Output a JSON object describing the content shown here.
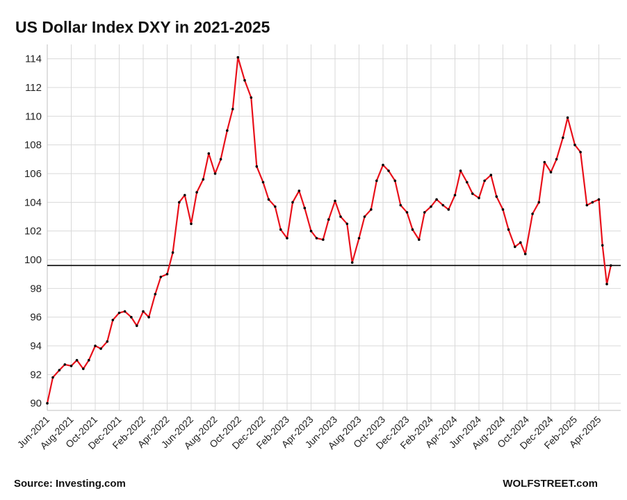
{
  "chart_data": {
    "type": "line",
    "title": "US Dollar Index DXY in 2021-2025",
    "xlabel": "",
    "ylabel": "",
    "ylim": [
      89.5,
      115
    ],
    "y_ticks": [
      90,
      92,
      94,
      96,
      98,
      100,
      102,
      104,
      106,
      108,
      110,
      112,
      114
    ],
    "x_ticks": [
      "Jun-2021",
      "Aug-2021",
      "Oct-2021",
      "Dec-2021",
      "Feb-2022",
      "Apr-2022",
      "Jun-2022",
      "Aug-2022",
      "Oct-2022",
      "Dec-2022",
      "Feb-2023",
      "Apr-2023",
      "Jun-2023",
      "Aug-2023",
      "Oct-2023",
      "Dec-2023",
      "Feb-2024",
      "Apr-2024",
      "Jun-2024",
      "Aug-2024",
      "Oct-2024",
      "Dec-2024",
      "Feb-2025",
      "Apr-2025"
    ],
    "grid": true,
    "line_color": "#e8101a",
    "marker_color": "#000000",
    "reference_line": {
      "y": 99.6,
      "color": "#000000"
    },
    "series": [
      {
        "x": [
          "2021-06-01",
          "2021-06-15",
          "2021-07-01",
          "2021-07-15",
          "2021-08-01",
          "2021-08-15",
          "2021-09-01",
          "2021-09-15",
          "2021-10-01",
          "2021-10-15",
          "2021-11-01",
          "2021-11-15",
          "2021-12-01",
          "2021-12-15",
          "2022-01-01",
          "2022-01-15",
          "2022-02-01",
          "2022-02-15",
          "2022-03-01",
          "2022-03-15",
          "2022-04-01",
          "2022-04-15",
          "2022-05-01",
          "2022-05-15",
          "2022-06-01",
          "2022-06-15",
          "2022-07-01",
          "2022-07-15",
          "2022-08-01",
          "2022-08-15",
          "2022-09-01",
          "2022-09-15",
          "2022-09-28",
          "2022-10-15",
          "2022-11-01",
          "2022-11-15",
          "2022-12-01",
          "2022-12-15",
          "2023-01-01",
          "2023-01-15",
          "2023-02-01",
          "2023-02-15",
          "2023-03-01",
          "2023-03-15",
          "2023-04-01",
          "2023-04-15",
          "2023-05-01",
          "2023-05-15",
          "2023-06-01",
          "2023-06-15",
          "2023-07-01",
          "2023-07-14",
          "2023-08-01",
          "2023-08-15",
          "2023-09-01",
          "2023-09-15",
          "2023-10-01",
          "2023-10-15",
          "2023-11-01",
          "2023-11-15",
          "2023-12-01",
          "2023-12-15",
          "2024-01-01",
          "2024-01-15",
          "2024-02-01",
          "2024-02-15",
          "2024-03-01",
          "2024-03-15",
          "2024-04-01",
          "2024-04-15",
          "2024-05-01",
          "2024-05-15",
          "2024-06-01",
          "2024-06-15",
          "2024-07-01",
          "2024-07-15",
          "2024-08-01",
          "2024-08-15",
          "2024-09-01",
          "2024-09-15",
          "2024-09-27",
          "2024-10-15",
          "2024-11-01",
          "2024-11-15",
          "2024-12-01",
          "2024-12-15",
          "2025-01-01",
          "2025-01-13",
          "2025-02-01",
          "2025-02-15",
          "2025-03-01",
          "2025-03-15",
          "2025-04-01",
          "2025-04-10",
          "2025-04-21",
          "2025-05-01"
        ],
        "values": [
          90.0,
          91.8,
          92.3,
          92.7,
          92.6,
          93.0,
          92.4,
          93.0,
          94.0,
          93.8,
          94.3,
          95.8,
          96.3,
          96.4,
          96.0,
          95.4,
          96.4,
          96.0,
          97.6,
          98.8,
          99.0,
          100.5,
          104.0,
          104.5,
          102.5,
          104.7,
          105.6,
          107.4,
          106.0,
          107.0,
          109.0,
          110.5,
          114.1,
          112.5,
          111.3,
          106.5,
          105.4,
          104.2,
          103.7,
          102.1,
          101.5,
          104.0,
          104.8,
          103.6,
          102.0,
          101.5,
          101.4,
          102.8,
          104.1,
          103.0,
          102.5,
          99.8,
          101.5,
          103.0,
          103.5,
          105.5,
          106.6,
          106.2,
          105.5,
          103.8,
          103.3,
          102.1,
          101.4,
          103.3,
          103.7,
          104.2,
          103.8,
          103.5,
          104.5,
          106.2,
          105.4,
          104.6,
          104.3,
          105.5,
          105.9,
          104.4,
          103.5,
          102.1,
          100.9,
          101.2,
          100.4,
          103.2,
          104.0,
          106.8,
          106.1,
          107.0,
          108.5,
          109.9,
          108.0,
          107.5,
          103.8,
          104.0,
          104.2,
          101.0,
          98.3,
          99.6
        ]
      }
    ]
  },
  "footer": {
    "source": "Source: Investing.com",
    "brand": "WOLFSTREET.com"
  }
}
